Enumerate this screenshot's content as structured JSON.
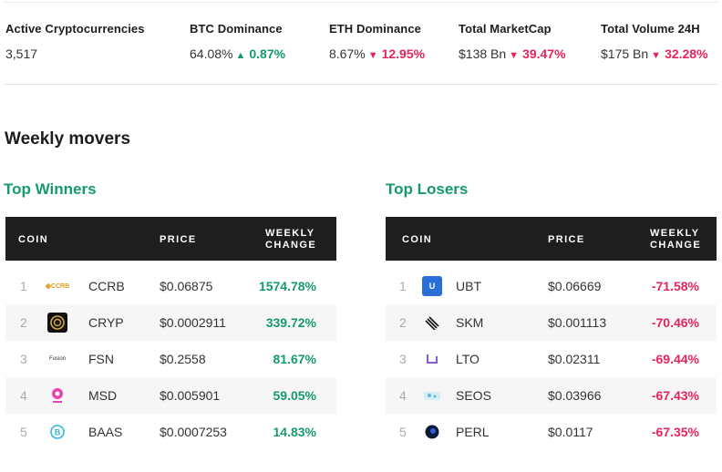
{
  "stats": [
    {
      "label": "Active Cryptocurrencies",
      "value": "3,517",
      "change": "",
      "dir": ""
    },
    {
      "label": "BTC Dominance",
      "value": "64.08%",
      "change": "0.87%",
      "dir": "up"
    },
    {
      "label": "ETH Dominance",
      "value": "8.67%",
      "change": "12.95%",
      "dir": "down"
    },
    {
      "label": "Total MarketCap",
      "value": "$138 Bn",
      "change": "39.47%",
      "dir": "down"
    },
    {
      "label": "Total Volume 24H",
      "value": "$175 Bn",
      "change": "32.28%",
      "dir": "down"
    }
  ],
  "section_title": "Weekly movers",
  "headers": {
    "coin": "COIN",
    "price": "PRICE",
    "weekly_line1": "WEEKLY",
    "weekly_line2": "CHANGE"
  },
  "winners": {
    "title": "Top Winners",
    "rows": [
      {
        "rank": "1",
        "symbol": "CCRB",
        "price": "$0.06875",
        "change": "1574.78%"
      },
      {
        "rank": "2",
        "symbol": "CRYP",
        "price": "$0.0002911",
        "change": "339.72%"
      },
      {
        "rank": "3",
        "symbol": "FSN",
        "price": "$0.2558",
        "change": "81.67%"
      },
      {
        "rank": "4",
        "symbol": "MSD",
        "price": "$0.005901",
        "change": "59.05%"
      },
      {
        "rank": "5",
        "symbol": "BAAS",
        "price": "$0.0007253",
        "change": "14.83%"
      }
    ]
  },
  "losers": {
    "title": "Top Losers",
    "rows": [
      {
        "rank": "1",
        "symbol": "UBT",
        "price": "$0.06669",
        "change": "-71.58%"
      },
      {
        "rank": "2",
        "symbol": "SKM",
        "price": "$0.001113",
        "change": "-70.46%"
      },
      {
        "rank": "3",
        "symbol": "LTO",
        "price": "$0.02311",
        "change": "-69.44%"
      },
      {
        "rank": "4",
        "symbol": "SEOS",
        "price": "$0.03966",
        "change": "-67.43%"
      },
      {
        "rank": "5",
        "symbol": "PERL",
        "price": "$0.0117",
        "change": "-67.35%"
      }
    ]
  },
  "colors": {
    "up": "#159a6b",
    "down": "#e5245b",
    "header_bg": "#1e1e1e"
  }
}
